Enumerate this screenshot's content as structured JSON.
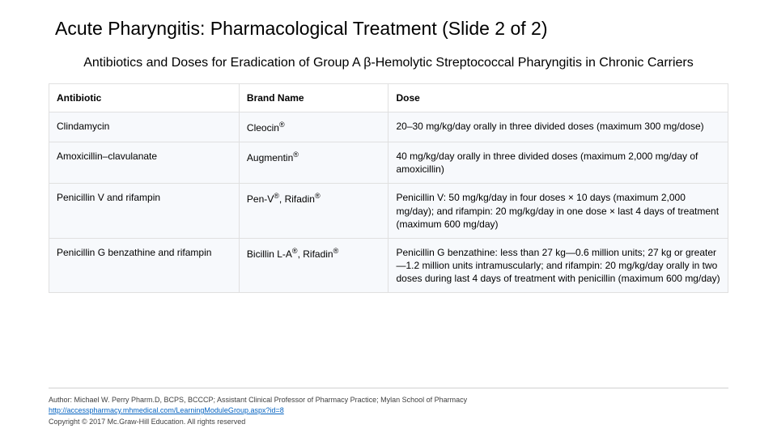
{
  "slide": {
    "title": "Acute Pharyngitis: Pharmacological Treatment (Slide 2 of 2)",
    "subtitle": "Antibiotics and Doses for Eradication of Group A β-Hemolytic Streptococcal Pharyngitis in Chronic Carriers"
  },
  "table": {
    "columns": [
      "Antibiotic",
      "Brand Name",
      "Dose"
    ],
    "col_widths": [
      "28%",
      "22%",
      "50%"
    ],
    "header_fontsize": 12,
    "cell_fontsize": 12,
    "header_bg": "#ffffff",
    "row_bg": "#f7f9fc",
    "border_color": "#e0e0e0",
    "rows": [
      {
        "antibiotic": "Clindamycin",
        "brand_html": "Cleocin<span class='rmark'>®</span>",
        "dose": "20–30 mg/kg/day orally in three divided doses (maximum 300 mg/dose)"
      },
      {
        "antibiotic": "Amoxicillin–clavulanate",
        "brand_html": "Augmentin<span class='rmark'>®</span>",
        "dose": "40 mg/kg/day orally in three divided doses (maximum 2,000 mg/day of amoxicillin)"
      },
      {
        "antibiotic": "Penicillin V and rifampin",
        "brand_html": "Pen-V<span class='rmark'>®</span>, Rifadin<span class='rmark'>®</span>",
        "dose": "Penicillin V: 50 mg/kg/day in four doses × 10 days (maximum 2,000 mg/day); and rifampin: 20 mg/kg/day in one dose × last 4 days of treatment (maximum 600 mg/day)"
      },
      {
        "antibiotic": "Penicillin G benzathine and rifampin",
        "brand_html": "Bicillin L-A<span class='rmark'>®</span>, Rifadin<span class='rmark'>®</span>",
        "dose": "Penicillin G benzathine: less than 27 kg—0.6 million units; 27 kg or greater—1.2 million units intramuscularly; and rifampin: 20 mg/kg/day orally in two doses during last 4 days of treatment with penicillin (maximum 600 mg/day)"
      }
    ]
  },
  "footer": {
    "author": "Author: Michael W. Perry Pharm.D, BCPS, BCCCP; Assistant Clinical Professor of Pharmacy Practice; Mylan School of Pharmacy",
    "link": "http://accesspharmacy.mhmedical.com/LearningModuleGroup.aspx?id=8",
    "copyright": "Copyright © 2017 Mc.Graw-Hill Education. All rights reserved"
  },
  "colors": {
    "background": "#ffffff",
    "text": "#000000",
    "link": "#0563c1",
    "divider": "#d0d0d0"
  },
  "typography": {
    "title_fontsize": 23,
    "subtitle_fontsize": 16,
    "body_fontsize": 12,
    "footer_fontsize": 9,
    "font_family": "Arial"
  }
}
